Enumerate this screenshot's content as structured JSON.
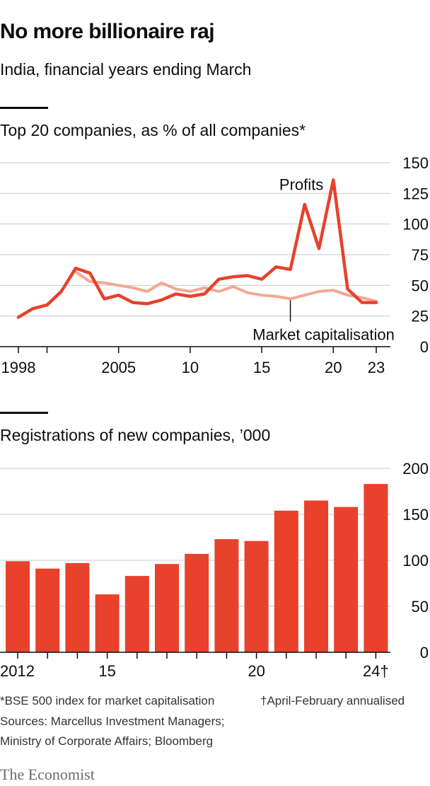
{
  "title": "No more billionaire raj",
  "subtitle": "India, financial years ending March",
  "colors": {
    "profits": "#e8412c",
    "market_cap": "#f3a892",
    "bars": "#e8412c",
    "grid": "#c9c9c9",
    "axis": "#0d0d0d"
  },
  "footnotes": {
    "note1": "*BSE 500 index for market capitalisation",
    "note2": "†April-February annualised",
    "sources_line1": "Sources: Marcellus Investment Managers;",
    "sources_line2": "Ministry of Corporate Affairs; Bloomberg"
  },
  "brand": "The Economist",
  "chart_data": [
    {
      "type": "line",
      "title": "Top 20 companies, as % of all companies*",
      "xlim": [
        1998,
        2023
      ],
      "ylim": [
        0,
        150
      ],
      "yticks": [
        0,
        25,
        50,
        75,
        100,
        125,
        150
      ],
      "xticks": [
        1998,
        2000,
        2005,
        2010,
        2015,
        2020,
        2023
      ],
      "xtick_labels": [
        {
          "x": 1998,
          "label": "1998"
        },
        {
          "x": 2005,
          "label": "2005"
        },
        {
          "x": 2010,
          "label": "10"
        },
        {
          "x": 2015,
          "label": "15"
        },
        {
          "x": 2020,
          "label": "20"
        },
        {
          "x": 2023,
          "label": "23"
        }
      ],
      "grid": true,
      "annotations": [
        {
          "text": "Profits",
          "series": "profits",
          "x": 2020
        },
        {
          "text": "Market capitalisation",
          "series": "market_cap",
          "x": 2017
        }
      ],
      "series": [
        {
          "name": "Profits",
          "key": "profits",
          "x": [
            1998,
            1999,
            2000,
            2001,
            2002,
            2003,
            2004,
            2005,
            2006,
            2007,
            2008,
            2009,
            2010,
            2011,
            2012,
            2013,
            2014,
            2015,
            2016,
            2017,
            2018,
            2019,
            2020,
            2021,
            2022,
            2023
          ],
          "values": [
            24,
            31,
            34,
            45,
            64,
            60,
            39,
            42,
            36,
            35,
            38,
            43,
            41,
            43,
            55,
            57,
            58,
            55,
            65,
            63,
            116,
            80,
            136,
            47,
            36,
            36
          ]
        },
        {
          "name": "Market capitalisation",
          "key": "market_cap",
          "x": [
            2002,
            2003,
            2004,
            2005,
            2006,
            2007,
            2008,
            2009,
            2010,
            2011,
            2012,
            2013,
            2014,
            2015,
            2016,
            2017,
            2018,
            2019,
            2020,
            2021,
            2022,
            2023
          ],
          "values": [
            61,
            53,
            52,
            50,
            48,
            45,
            52,
            47,
            45,
            48,
            45,
            49,
            44,
            42,
            41,
            39,
            42,
            45,
            46,
            42,
            40,
            37
          ]
        }
      ]
    },
    {
      "type": "bar",
      "title": "Registrations of new companies, ’000",
      "categories": [
        "2012",
        "2013",
        "2014",
        "2015",
        "2016",
        "2017",
        "2018",
        "2019",
        "2020",
        "2021",
        "2022",
        "2023",
        "2024"
      ],
      "values": [
        99,
        91,
        97,
        63,
        83,
        96,
        107,
        123,
        121,
        154,
        165,
        158,
        183
      ],
      "ylim": [
        0,
        200
      ],
      "yticks": [
        0,
        50,
        100,
        150,
        200
      ],
      "xtick_labels": [
        {
          "category": "2012",
          "label": "2012"
        },
        {
          "category": "2015",
          "label": "15"
        },
        {
          "category": "2020",
          "label": "20"
        },
        {
          "category": "2024",
          "label": "24†"
        }
      ],
      "grid": true
    }
  ]
}
